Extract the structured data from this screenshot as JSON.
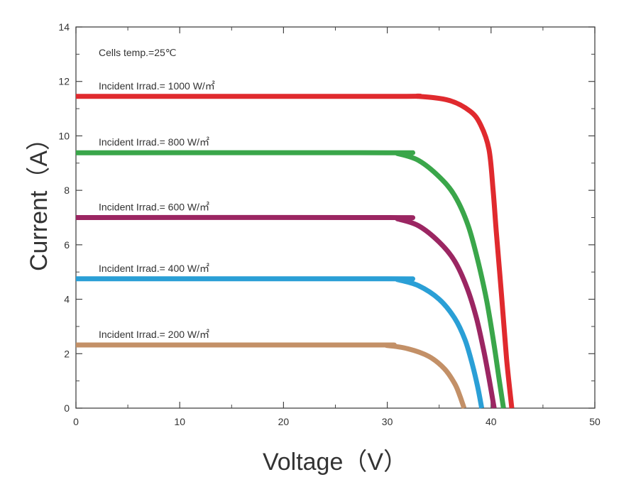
{
  "chart_data": {
    "type": "line",
    "title": "",
    "xlabel": "Voltage（V）",
    "ylabel": "Current（A）",
    "xlim": [
      0,
      50
    ],
    "ylim": [
      0,
      14
    ],
    "xticks": [
      0,
      10,
      20,
      30,
      40,
      50
    ],
    "yticks": [
      0,
      2,
      4,
      6,
      8,
      10,
      12,
      14
    ],
    "grid": false,
    "annotation": "Cells temp.=25℃",
    "series": [
      {
        "name": "Incident Irrad.= 1000 W/㎡",
        "color": "#e02a2e",
        "x": [
          0,
          30,
          33,
          36,
          38,
          39,
          39.8,
          40.2,
          40.5,
          41,
          41.5,
          42.0
        ],
        "y": [
          11.45,
          11.45,
          11.45,
          11.3,
          10.9,
          10.4,
          9.5,
          8.0,
          6.5,
          4.2,
          1.8,
          0
        ]
      },
      {
        "name": "Incident Irrad.= 800 W/㎡",
        "color": "#3aa64a",
        "x": [
          0,
          30,
          31,
          33,
          35,
          36.5,
          37.8,
          38.8,
          39.6,
          40.3,
          40.8,
          41.2
        ],
        "y": [
          9.38,
          9.38,
          9.35,
          9.1,
          8.5,
          7.8,
          6.7,
          5.3,
          3.9,
          2.3,
          1.0,
          0
        ]
      },
      {
        "name": "Incident Irrad.= 600 W/㎡",
        "color": "#9b2662",
        "x": [
          0,
          30,
          31,
          33,
          35,
          36.5,
          37.7,
          38.6,
          39.3,
          39.8,
          40.3
        ],
        "y": [
          7.0,
          7.0,
          6.95,
          6.7,
          6.1,
          5.4,
          4.4,
          3.3,
          2.1,
          1.1,
          0
        ]
      },
      {
        "name": "Incident Irrad.= 400 W/㎡",
        "color": "#2a9fd6",
        "x": [
          0,
          30,
          31,
          33,
          35,
          36.5,
          37.5,
          38.2,
          38.7,
          39.1
        ],
        "y": [
          4.75,
          4.75,
          4.72,
          4.5,
          4.0,
          3.3,
          2.5,
          1.6,
          0.8,
          0
        ]
      },
      {
        "name": "Incident Irrad.= 200 W/㎡",
        "color": "#c39067",
        "x": [
          0,
          28,
          30,
          32,
          34,
          35.5,
          36.5,
          37.0,
          37.4
        ],
        "y": [
          2.32,
          2.32,
          2.3,
          2.18,
          1.9,
          1.45,
          0.9,
          0.45,
          0
        ]
      }
    ]
  }
}
